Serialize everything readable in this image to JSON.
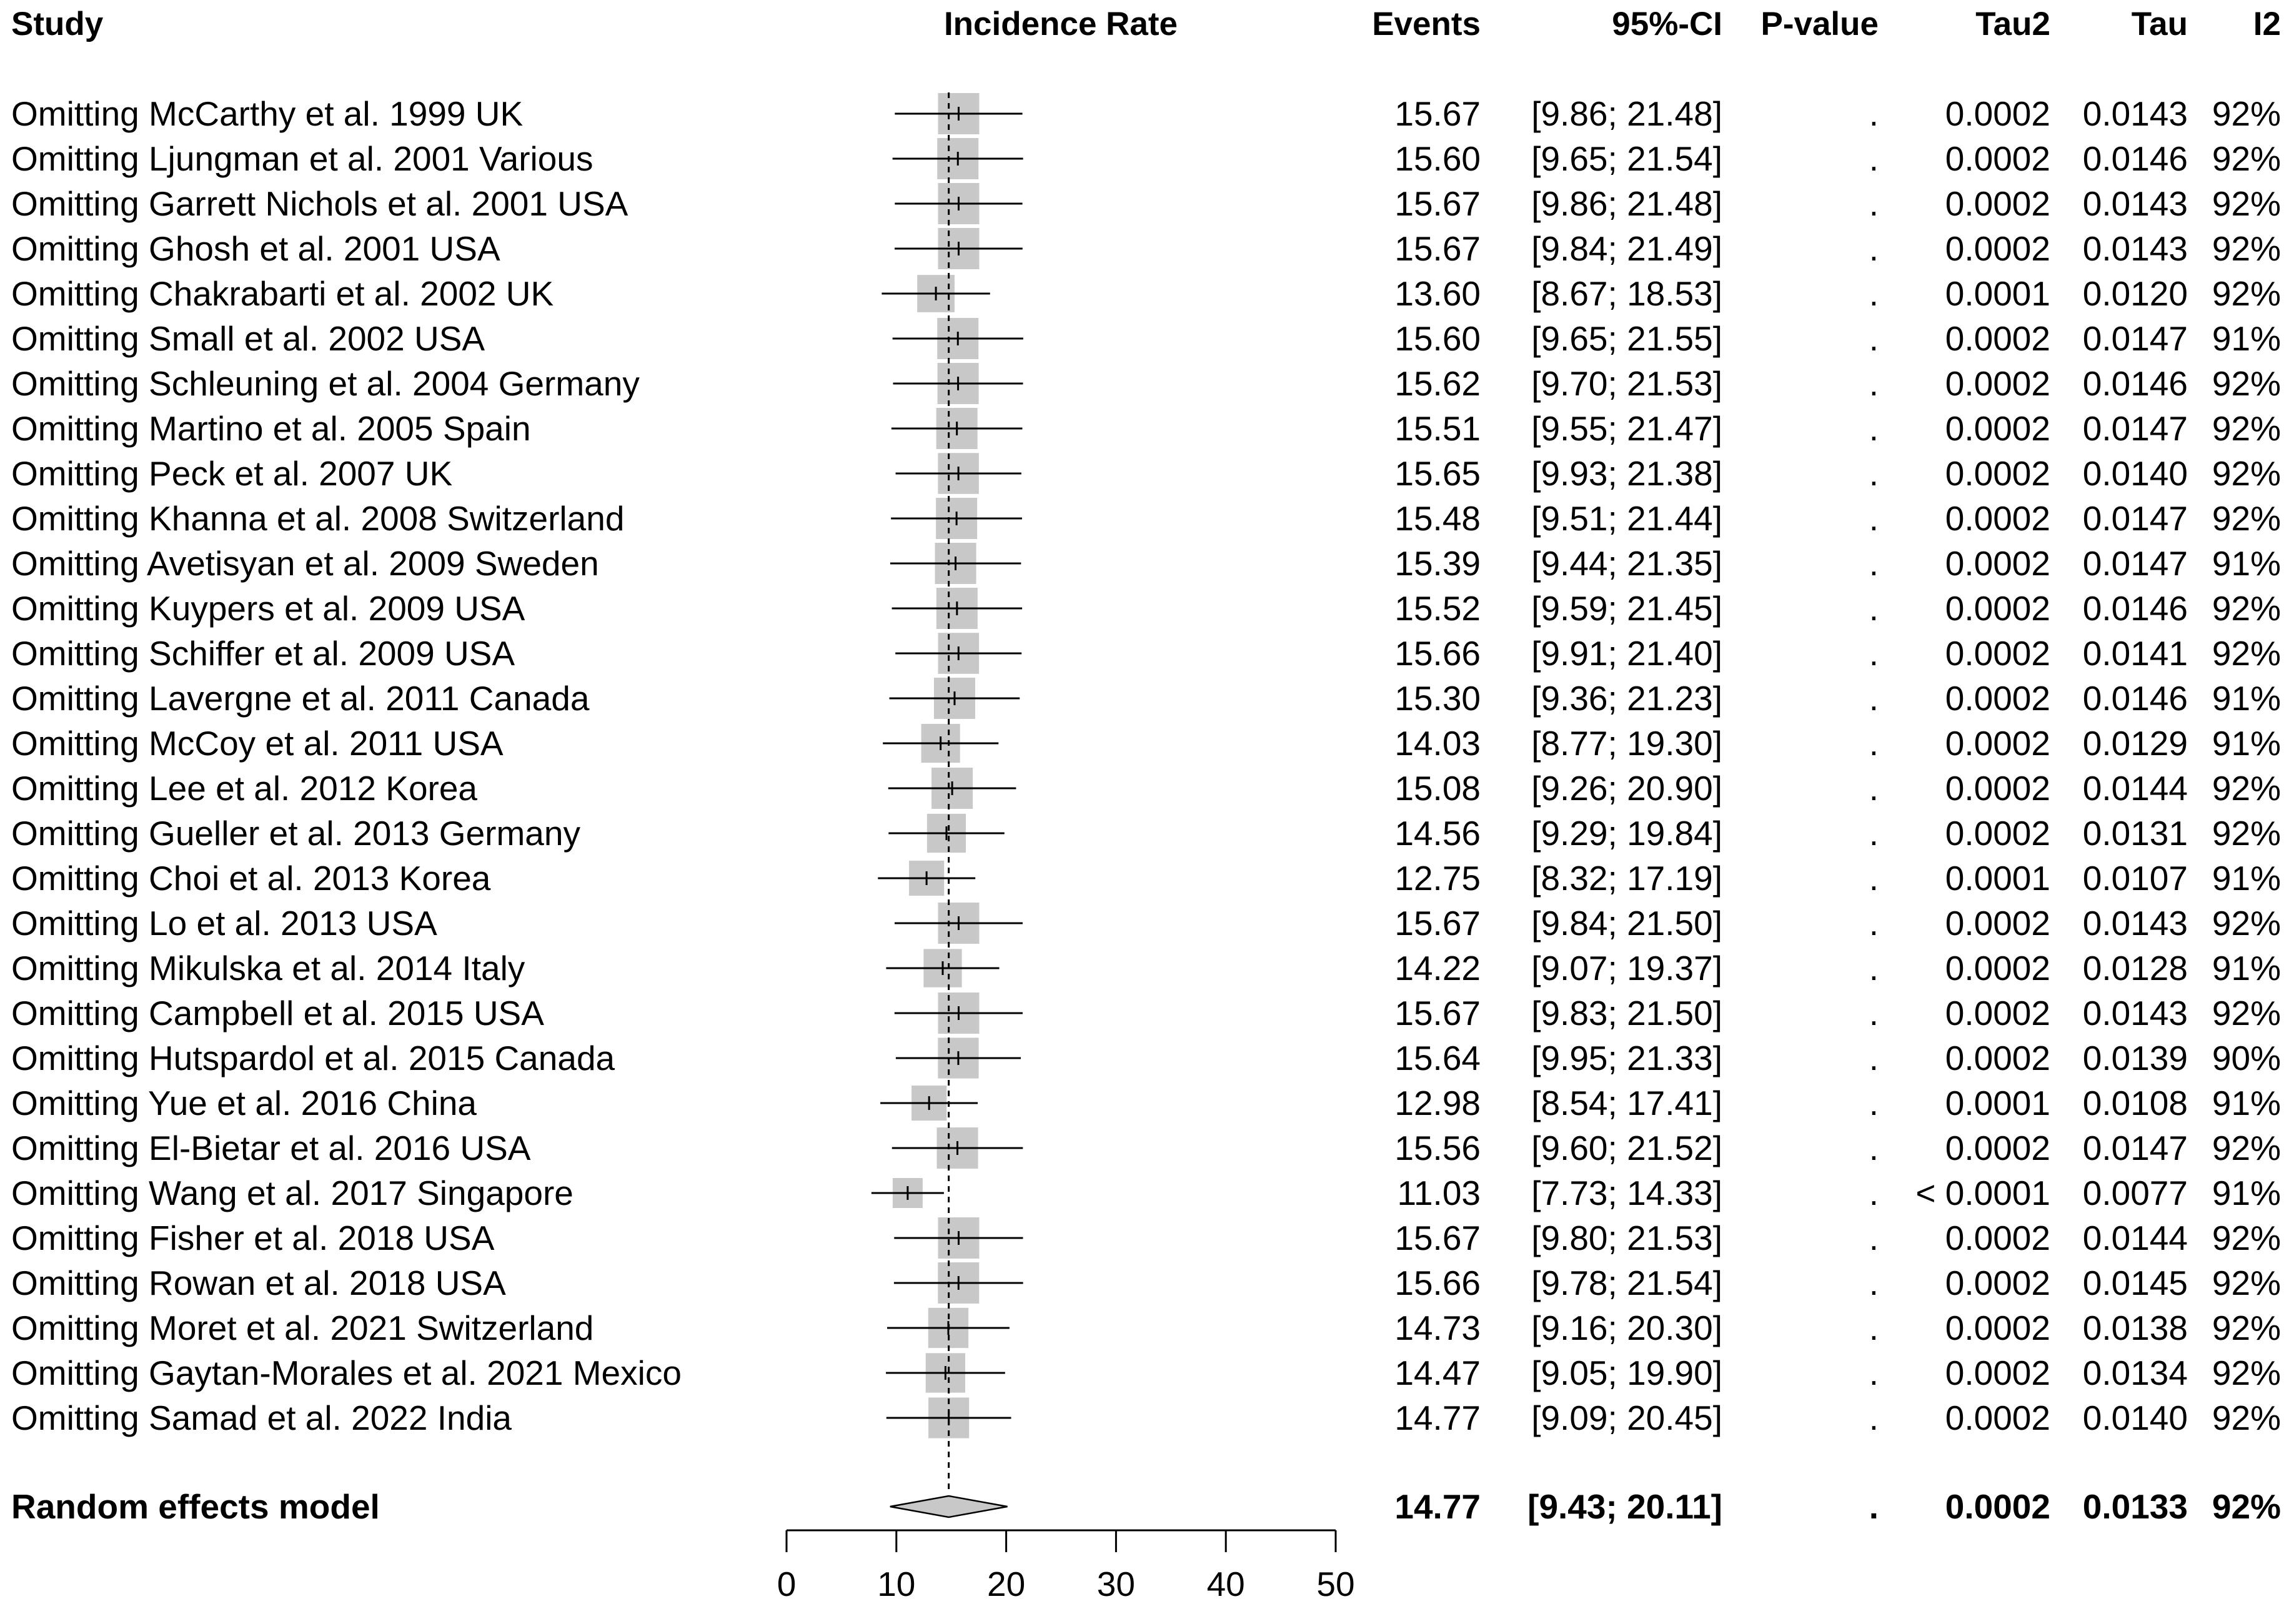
{
  "chart_data": {
    "type": "forest",
    "title": "",
    "xlabel": "",
    "ylabel": "",
    "xlim": [
      0,
      50
    ],
    "ticks": [
      "0",
      "10",
      "20",
      "30",
      "40",
      "50"
    ],
    "reference_line": 14.77,
    "headers": {
      "study": "Study",
      "plot": "Incidence Rate",
      "events": "Events",
      "ci": "95%-CI",
      "pvalue": "P-value",
      "tau2": "Tau2",
      "tau": "Tau",
      "i2": "I2"
    },
    "rows": [
      {
        "study": "Omitting McCarthy et al. 1999 UK",
        "est": 15.67,
        "lo": 9.86,
        "hi": 21.48,
        "events": "15.67",
        "ci": "[9.86; 21.48]",
        "p": ".",
        "tau2": "0.0002",
        "tau": "0.0143",
        "i2": "92%"
      },
      {
        "study": "Omitting Ljungman et al. 2001 Various",
        "est": 15.6,
        "lo": 9.65,
        "hi": 21.54,
        "events": "15.60",
        "ci": "[9.65; 21.54]",
        "p": ".",
        "tau2": "0.0002",
        "tau": "0.0146",
        "i2": "92%"
      },
      {
        "study": "Omitting Garrett Nichols et al. 2001 USA",
        "est": 15.67,
        "lo": 9.86,
        "hi": 21.48,
        "events": "15.67",
        "ci": "[9.86; 21.48]",
        "p": ".",
        "tau2": "0.0002",
        "tau": "0.0143",
        "i2": "92%"
      },
      {
        "study": "Omitting Ghosh et al. 2001 USA",
        "est": 15.67,
        "lo": 9.84,
        "hi": 21.49,
        "events": "15.67",
        "ci": "[9.84; 21.49]",
        "p": ".",
        "tau2": "0.0002",
        "tau": "0.0143",
        "i2": "92%"
      },
      {
        "study": "Omitting Chakrabarti et al. 2002 UK",
        "est": 13.6,
        "lo": 8.67,
        "hi": 18.53,
        "events": "13.60",
        "ci": "[8.67; 18.53]",
        "p": ".",
        "tau2": "0.0001",
        "tau": "0.0120",
        "i2": "92%"
      },
      {
        "study": "Omitting Small et al. 2002 USA",
        "est": 15.6,
        "lo": 9.65,
        "hi": 21.55,
        "events": "15.60",
        "ci": "[9.65; 21.55]",
        "p": ".",
        "tau2": "0.0002",
        "tau": "0.0147",
        "i2": "91%"
      },
      {
        "study": "Omitting Schleuning et al. 2004 Germany",
        "est": 15.62,
        "lo": 9.7,
        "hi": 21.53,
        "events": "15.62",
        "ci": "[9.70; 21.53]",
        "p": ".",
        "tau2": "0.0002",
        "tau": "0.0146",
        "i2": "92%"
      },
      {
        "study": "Omitting Martino et al. 2005 Spain",
        "est": 15.51,
        "lo": 9.55,
        "hi": 21.47,
        "events": "15.51",
        "ci": "[9.55; 21.47]",
        "p": ".",
        "tau2": "0.0002",
        "tau": "0.0147",
        "i2": "92%"
      },
      {
        "study": "Omitting Peck et al. 2007 UK",
        "est": 15.65,
        "lo": 9.93,
        "hi": 21.38,
        "events": "15.65",
        "ci": "[9.93; 21.38]",
        "p": ".",
        "tau2": "0.0002",
        "tau": "0.0140",
        "i2": "92%"
      },
      {
        "study": "Omitting Khanna et al. 2008 Switzerland",
        "est": 15.48,
        "lo": 9.51,
        "hi": 21.44,
        "events": "15.48",
        "ci": "[9.51; 21.44]",
        "p": ".",
        "tau2": "0.0002",
        "tau": "0.0147",
        "i2": "92%"
      },
      {
        "study": "Omitting Avetisyan et al. 2009 Sweden",
        "est": 15.39,
        "lo": 9.44,
        "hi": 21.35,
        "events": "15.39",
        "ci": "[9.44; 21.35]",
        "p": ".",
        "tau2": "0.0002",
        "tau": "0.0147",
        "i2": "91%"
      },
      {
        "study": "Omitting Kuypers et al. 2009 USA",
        "est": 15.52,
        "lo": 9.59,
        "hi": 21.45,
        "events": "15.52",
        "ci": "[9.59; 21.45]",
        "p": ".",
        "tau2": "0.0002",
        "tau": "0.0146",
        "i2": "92%"
      },
      {
        "study": "Omitting Schiffer et al. 2009 USA",
        "est": 15.66,
        "lo": 9.91,
        "hi": 21.4,
        "events": "15.66",
        "ci": "[9.91; 21.40]",
        "p": ".",
        "tau2": "0.0002",
        "tau": "0.0141",
        "i2": "92%"
      },
      {
        "study": "Omitting Lavergne et al. 2011 Canada",
        "est": 15.3,
        "lo": 9.36,
        "hi": 21.23,
        "events": "15.30",
        "ci": "[9.36; 21.23]",
        "p": ".",
        "tau2": "0.0002",
        "tau": "0.0146",
        "i2": "91%"
      },
      {
        "study": "Omitting McCoy et al. 2011 USA",
        "est": 14.03,
        "lo": 8.77,
        "hi": 19.3,
        "events": "14.03",
        "ci": "[8.77; 19.30]",
        "p": ".",
        "tau2": "0.0002",
        "tau": "0.0129",
        "i2": "91%"
      },
      {
        "study": "Omitting Lee et al. 2012 Korea",
        "est": 15.08,
        "lo": 9.26,
        "hi": 20.9,
        "events": "15.08",
        "ci": "[9.26; 20.90]",
        "p": ".",
        "tau2": "0.0002",
        "tau": "0.0144",
        "i2": "92%"
      },
      {
        "study": "Omitting Gueller et al. 2013 Germany",
        "est": 14.56,
        "lo": 9.29,
        "hi": 19.84,
        "events": "14.56",
        "ci": "[9.29; 19.84]",
        "p": ".",
        "tau2": "0.0002",
        "tau": "0.0131",
        "i2": "92%"
      },
      {
        "study": "Omitting Choi et al. 2013 Korea",
        "est": 12.75,
        "lo": 8.32,
        "hi": 17.19,
        "events": "12.75",
        "ci": "[8.32; 17.19]",
        "p": ".",
        "tau2": "0.0001",
        "tau": "0.0107",
        "i2": "91%"
      },
      {
        "study": "Omitting Lo et al. 2013 USA",
        "est": 15.67,
        "lo": 9.84,
        "hi": 21.5,
        "events": "15.67",
        "ci": "[9.84; 21.50]",
        "p": ".",
        "tau2": "0.0002",
        "tau": "0.0143",
        "i2": "92%"
      },
      {
        "study": "Omitting Mikulska et al. 2014 Italy",
        "est": 14.22,
        "lo": 9.07,
        "hi": 19.37,
        "events": "14.22",
        "ci": "[9.07; 19.37]",
        "p": ".",
        "tau2": "0.0002",
        "tau": "0.0128",
        "i2": "91%"
      },
      {
        "study": "Omitting Campbell et al. 2015 USA",
        "est": 15.67,
        "lo": 9.83,
        "hi": 21.5,
        "events": "15.67",
        "ci": "[9.83; 21.50]",
        "p": ".",
        "tau2": "0.0002",
        "tau": "0.0143",
        "i2": "92%"
      },
      {
        "study": "Omitting Hutspardol et al. 2015 Canada",
        "est": 15.64,
        "lo": 9.95,
        "hi": 21.33,
        "events": "15.64",
        "ci": "[9.95; 21.33]",
        "p": ".",
        "tau2": "0.0002",
        "tau": "0.0139",
        "i2": "90%"
      },
      {
        "study": "Omitting Yue et al. 2016 China",
        "est": 12.98,
        "lo": 8.54,
        "hi": 17.41,
        "events": "12.98",
        "ci": "[8.54; 17.41]",
        "p": ".",
        "tau2": "0.0001",
        "tau": "0.0108",
        "i2": "91%"
      },
      {
        "study": "Omitting El-Bietar et al. 2016 USA",
        "est": 15.56,
        "lo": 9.6,
        "hi": 21.52,
        "events": "15.56",
        "ci": "[9.60; 21.52]",
        "p": ".",
        "tau2": "0.0002",
        "tau": "0.0147",
        "i2": "92%"
      },
      {
        "study": "Omitting Wang et al. 2017 Singapore",
        "est": 11.03,
        "lo": 7.73,
        "hi": 14.33,
        "events": "11.03",
        "ci": "[7.73; 14.33]",
        "p": ".",
        "tau2": "< 0.0001",
        "tau": "0.0077",
        "i2": "91%"
      },
      {
        "study": "Omitting Fisher et al. 2018 USA",
        "est": 15.67,
        "lo": 9.8,
        "hi": 21.53,
        "events": "15.67",
        "ci": "[9.80; 21.53]",
        "p": ".",
        "tau2": "0.0002",
        "tau": "0.0144",
        "i2": "92%"
      },
      {
        "study": "Omitting Rowan et al. 2018 USA",
        "est": 15.66,
        "lo": 9.78,
        "hi": 21.54,
        "events": "15.66",
        "ci": "[9.78; 21.54]",
        "p": ".",
        "tau2": "0.0002",
        "tau": "0.0145",
        "i2": "92%"
      },
      {
        "study": "Omitting Moret et al. 2021 Switzerland",
        "est": 14.73,
        "lo": 9.16,
        "hi": 20.3,
        "events": "14.73",
        "ci": "[9.16; 20.30]",
        "p": ".",
        "tau2": "0.0002",
        "tau": "0.0138",
        "i2": "92%"
      },
      {
        "study": "Omitting Gaytan-Morales et al. 2021 Mexico",
        "est": 14.47,
        "lo": 9.05,
        "hi": 19.9,
        "events": "14.47",
        "ci": "[9.05; 19.90]",
        "p": ".",
        "tau2": "0.0002",
        "tau": "0.0134",
        "i2": "92%"
      },
      {
        "study": "Omitting Samad et al. 2022 India",
        "est": 14.77,
        "lo": 9.09,
        "hi": 20.45,
        "events": "14.77",
        "ci": "[9.09; 20.45]",
        "p": ".",
        "tau2": "0.0002",
        "tau": "0.0140",
        "i2": "92%"
      }
    ],
    "summary": {
      "study": "Random effects model",
      "est": 14.77,
      "lo": 9.43,
      "hi": 20.11,
      "events": "14.77",
      "ci": "[9.43; 20.11]",
      "p": ".",
      "tau2": "0.0002",
      "tau": "0.0133",
      "i2": "92%"
    }
  },
  "colors": {
    "square": "#c8c8c8",
    "diamond": "#c8c8c8",
    "line": "#000000"
  }
}
